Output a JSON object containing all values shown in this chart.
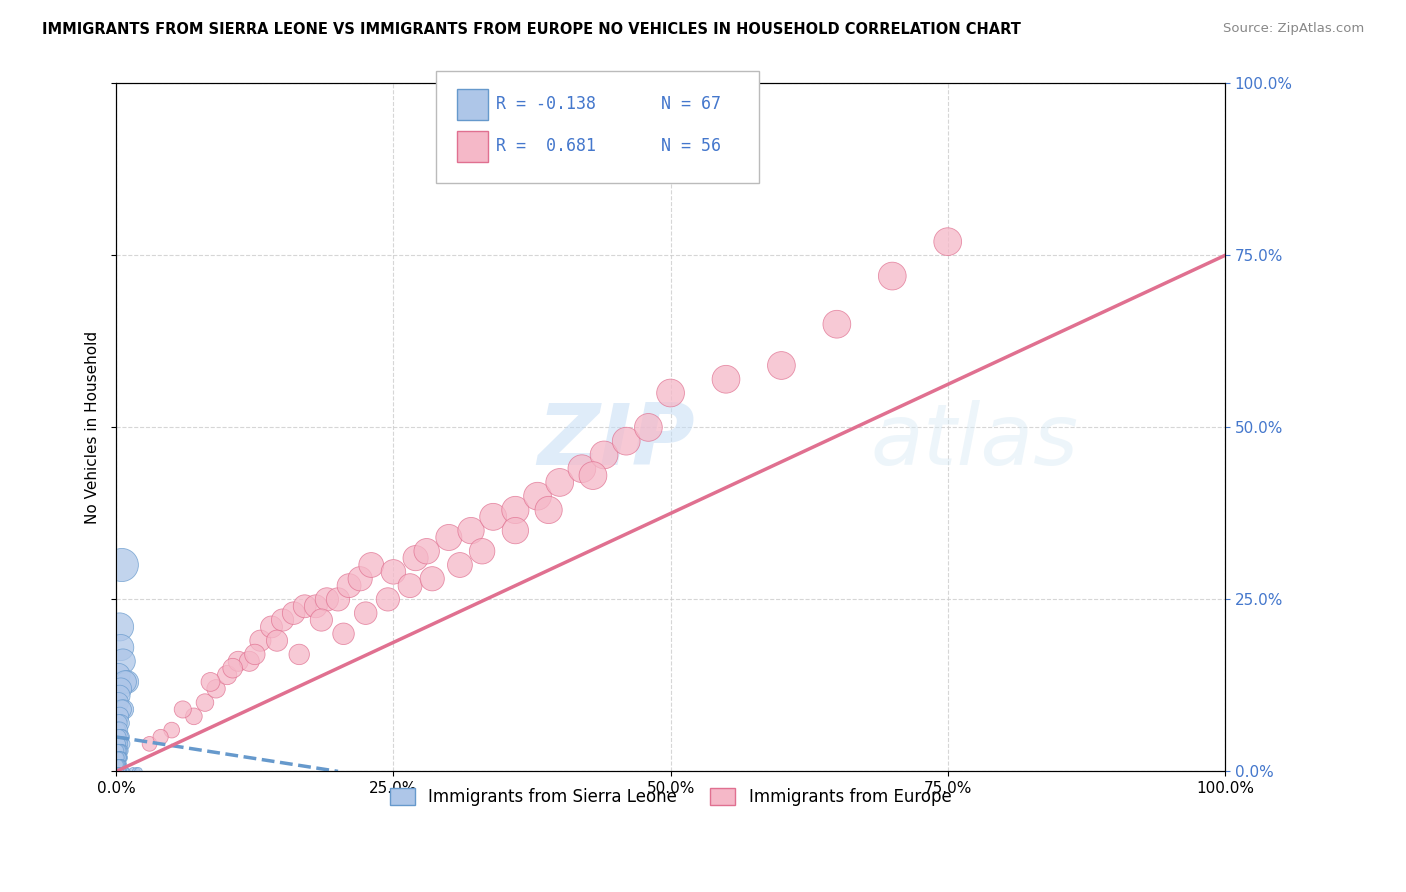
{
  "title": "IMMIGRANTS FROM SIERRA LEONE VS IMMIGRANTS FROM EUROPE NO VEHICLES IN HOUSEHOLD CORRELATION CHART",
  "source": "Source: ZipAtlas.com",
  "ylabel": "No Vehicles in Household",
  "watermark_zip": "ZIP",
  "watermark_atlas": "atlas",
  "series1_color": "#aec6e8",
  "series2_color": "#f5b8c8",
  "trendline1_color": "#6699cc",
  "trendline2_color": "#e07090",
  "bg_color": "#ffffff",
  "grid_color": "#cccccc",
  "blue_text_color": "#4477cc",
  "legend_r1": "R = -0.138",
  "legend_n1": "N = 67",
  "legend_r2": "R =  0.681",
  "legend_n2": "N = 56",
  "series1_label": "Immigrants from Sierra Leone",
  "series2_label": "Immigrants from Europe",
  "series1_x": [
    0.5,
    0.3,
    0.4,
    0.6,
    0.2,
    1.0,
    0.8,
    0.4,
    0.3,
    0.2,
    0.7,
    0.5,
    0.3,
    0.4,
    0.2,
    0.1,
    0.3,
    0.5,
    0.4,
    0.2,
    0.6,
    0.3,
    0.4,
    0.2,
    0.5,
    0.3,
    0.4,
    0.2,
    0.3,
    0.1,
    0.4,
    0.2,
    0.3,
    0.5,
    0.4,
    0.2,
    0.3,
    0.1,
    0.4,
    0.2,
    0.5,
    0.3,
    0.2,
    0.4,
    0.1,
    0.3,
    0.2,
    0.4,
    0.3,
    0.2,
    1.5,
    1.8,
    2.0,
    0.9,
    0.6,
    0.3,
    0.4,
    0.8,
    0.2,
    0.5,
    0.3,
    0.6,
    0.4,
    0.3,
    0.2,
    0.5,
    0.3
  ],
  "series1_y": [
    30,
    21,
    18,
    16,
    14,
    13,
    13,
    12,
    11,
    10,
    9,
    9,
    8,
    7,
    7,
    6,
    6,
    5,
    5,
    5,
    4,
    4,
    4,
    4,
    3,
    3,
    3,
    3,
    3,
    3,
    2,
    2,
    2,
    2,
    2,
    2,
    2,
    2,
    2,
    2,
    1,
    1,
    1,
    1,
    1,
    1,
    1,
    1,
    1,
    1,
    0,
    0,
    0,
    0,
    0,
    0,
    0,
    0,
    0,
    0,
    0,
    0,
    0,
    0,
    0,
    0,
    0
  ],
  "series2_x": [
    3.0,
    5.0,
    7.0,
    8.0,
    9.0,
    10.0,
    11.0,
    12.0,
    13.0,
    14.0,
    15.0,
    16.0,
    17.0,
    18.0,
    19.0,
    20.0,
    21.0,
    22.0,
    23.0,
    25.0,
    27.0,
    28.0,
    30.0,
    32.0,
    34.0,
    36.0,
    38.0,
    40.0,
    42.0,
    44.0,
    46.0,
    48.0,
    50.0,
    55.0,
    60.0,
    65.0,
    70.0,
    75.0,
    4.0,
    6.0,
    8.5,
    10.5,
    12.5,
    14.5,
    16.5,
    18.5,
    20.5,
    22.5,
    24.5,
    26.5,
    28.5,
    31.0,
    33.0,
    36.0,
    39.0,
    43.0
  ],
  "series2_y": [
    4,
    6,
    8,
    10,
    12,
    14,
    16,
    16,
    19,
    21,
    22,
    23,
    24,
    24,
    25,
    25,
    27,
    28,
    30,
    29,
    31,
    32,
    34,
    35,
    37,
    38,
    40,
    42,
    44,
    46,
    48,
    50,
    55,
    57,
    59,
    65,
    72,
    77,
    5,
    9,
    13,
    15,
    17,
    19,
    17,
    22,
    20,
    23,
    25,
    27,
    28,
    30,
    32,
    35,
    38,
    43
  ],
  "trendline1_x": [
    0,
    20
  ],
  "trendline1_y": [
    5.0,
    0.0
  ],
  "trendline2_x": [
    0,
    100
  ],
  "trendline2_y": [
    0.0,
    75.0
  ],
  "xlim": [
    0,
    100
  ],
  "ylim": [
    0,
    100
  ],
  "ytick_vals": [
    0,
    25,
    50,
    75,
    100
  ],
  "xtick_vals": [
    0,
    25,
    50,
    75,
    100
  ]
}
